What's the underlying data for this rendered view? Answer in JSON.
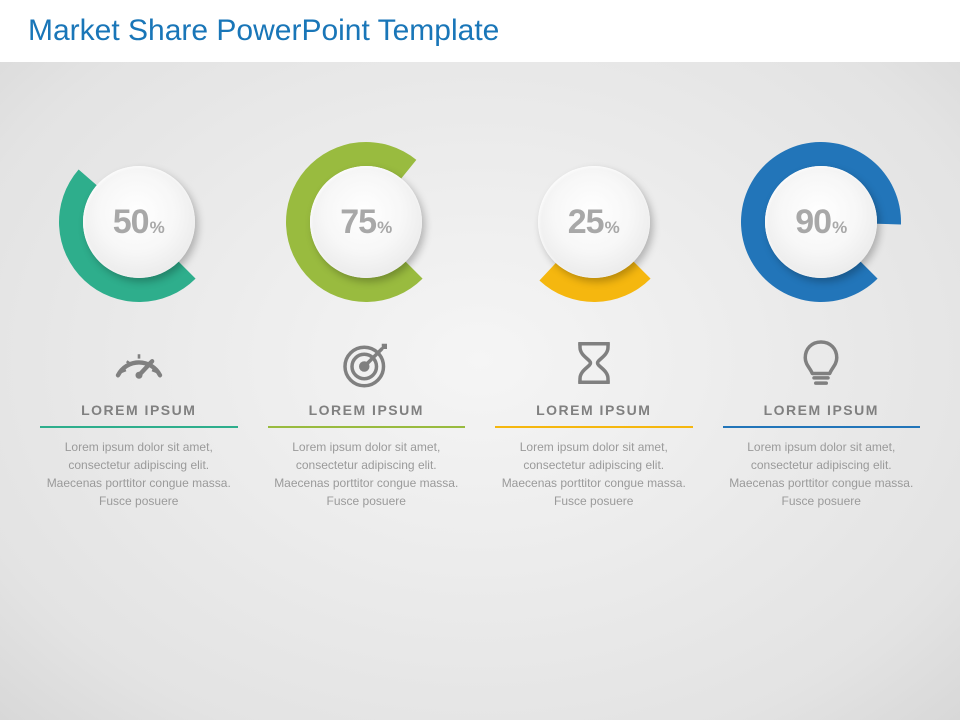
{
  "title": "Market Share PowerPoint Template",
  "title_color": "#1976b8",
  "title_fontsize": 30,
  "background_gradient": [
    "#f5f5f5",
    "#d8d8d8"
  ],
  "donut": {
    "outer_radius": 80,
    "inner_radius": 56,
    "gap_degrees": 8,
    "start_angle": 131,
    "disc_diameter": 112,
    "pct_num_fontsize": 34,
    "pct_sym_fontsize": 17,
    "pct_color": "#a8a8a8"
  },
  "icon_color": "#808080",
  "heading_color": "#808080",
  "heading_fontsize": 14,
  "body_color": "#9a9a9a",
  "body_fontsize": 12,
  "items": [
    {
      "percent": 50,
      "color": "#2eae8c",
      "icon": "gauge",
      "heading": "LOREM IPSUM",
      "body": "Lorem ipsum dolor sit amet, consectetur adipiscing elit. Maecenas porttitor congue massa. Fusce posuere"
    },
    {
      "percent": 75,
      "color": "#99bb3f",
      "icon": "target",
      "heading": "LOREM IPSUM",
      "body": "Lorem ipsum dolor sit amet, consectetur adipiscing elit. Maecenas porttitor congue massa. Fusce posuere"
    },
    {
      "percent": 25,
      "color": "#f5b70f",
      "icon": "hourglass",
      "heading": "LOREM IPSUM",
      "body": "Lorem ipsum dolor sit amet, consectetur adipiscing elit. Maecenas porttitor congue massa. Fusce posuere"
    },
    {
      "percent": 90,
      "color": "#2275b9",
      "icon": "bulb",
      "heading": "LOREM IPSUM",
      "body": "Lorem ipsum dolor sit amet, consectetur adipiscing elit. Maecenas porttitor congue massa. Fusce posuere"
    }
  ]
}
